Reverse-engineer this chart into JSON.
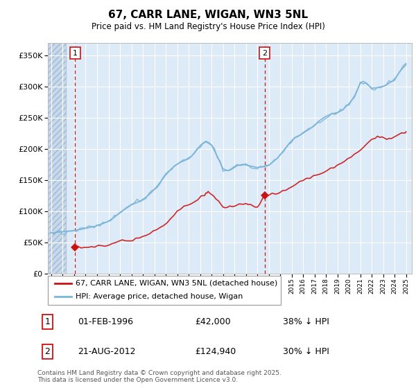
{
  "title": "67, CARR LANE, WIGAN, WN3 5NL",
  "subtitle": "Price paid vs. HM Land Registry's House Price Index (HPI)",
  "legend_line1": "67, CARR LANE, WIGAN, WN3 5NL (detached house)",
  "legend_line2": "HPI: Average price, detached house, Wigan",
  "footnote": "Contains HM Land Registry data © Crown copyright and database right 2025.\nThis data is licensed under the Open Government Licence v3.0.",
  "sale1_date": "01-FEB-1996",
  "sale1_price": "£42,000",
  "sale1_hpi": "38% ↓ HPI",
  "sale2_date": "21-AUG-2012",
  "sale2_price": "£124,940",
  "sale2_hpi": "30% ↓ HPI",
  "hpi_color": "#7ab4d8",
  "price_color": "#cc1111",
  "background_plot": "#ddeaf7",
  "ylim": [
    0,
    370000
  ],
  "xlim_start": 1993.7,
  "xlim_end": 2025.5,
  "sale1_x": 1996.08,
  "sale1_y": 42000,
  "sale2_x": 2012.64,
  "sale2_y": 124940,
  "hatch_end": 1995.3,
  "hpi_x": [
    1994.0,
    1994.25,
    1994.5,
    1994.75,
    1995.0,
    1995.25,
    1995.5,
    1995.75,
    1996.0,
    1996.25,
    1996.5,
    1996.75,
    1997.0,
    1997.25,
    1997.5,
    1997.75,
    1998.0,
    1998.25,
    1998.5,
    1998.75,
    1999.0,
    1999.25,
    1999.5,
    1999.75,
    2000.0,
    2000.25,
    2000.5,
    2000.75,
    2001.0,
    2001.25,
    2001.5,
    2001.75,
    2002.0,
    2002.25,
    2002.5,
    2002.75,
    2003.0,
    2003.25,
    2003.5,
    2003.75,
    2004.0,
    2004.25,
    2004.5,
    2004.75,
    2005.0,
    2005.25,
    2005.5,
    2005.75,
    2006.0,
    2006.25,
    2006.5,
    2006.75,
    2007.0,
    2007.25,
    2007.5,
    2007.75,
    2008.0,
    2008.25,
    2008.5,
    2008.75,
    2009.0,
    2009.25,
    2009.5,
    2009.75,
    2010.0,
    2010.25,
    2010.5,
    2010.75,
    2011.0,
    2011.25,
    2011.5,
    2011.75,
    2012.0,
    2012.25,
    2012.5,
    2012.75,
    2013.0,
    2013.25,
    2013.5,
    2013.75,
    2014.0,
    2014.25,
    2014.5,
    2014.75,
    2015.0,
    2015.25,
    2015.5,
    2015.75,
    2016.0,
    2016.25,
    2016.5,
    2016.75,
    2017.0,
    2017.25,
    2017.5,
    2017.75,
    2018.0,
    2018.25,
    2018.5,
    2018.75,
    2019.0,
    2019.25,
    2019.5,
    2019.75,
    2020.0,
    2020.25,
    2020.5,
    2020.75,
    2021.0,
    2021.25,
    2021.5,
    2021.75,
    2022.0,
    2022.25,
    2022.5,
    2022.75,
    2023.0,
    2023.25,
    2023.5,
    2023.75,
    2024.0,
    2024.25,
    2024.5,
    2024.75,
    2025.0
  ],
  "hpi_y": [
    65000,
    65500,
    66000,
    66500,
    67000,
    67500,
    68000,
    68500,
    69000,
    69800,
    70500,
    71500,
    72500,
    73500,
    74500,
    75500,
    77000,
    78500,
    80000,
    82000,
    84000,
    87000,
    90000,
    94000,
    98000,
    101000,
    104000,
    107000,
    110000,
    112000,
    114000,
    116000,
    119000,
    122000,
    126000,
    130000,
    135000,
    140000,
    146000,
    152000,
    158000,
    163000,
    168000,
    172000,
    175000,
    178000,
    180000,
    182000,
    184000,
    188000,
    193000,
    199000,
    205000,
    209000,
    212000,
    210000,
    206000,
    197000,
    188000,
    178000,
    168000,
    166000,
    165000,
    167000,
    170000,
    173000,
    174000,
    175000,
    174000,
    173000,
    172000,
    171000,
    170000,
    170500,
    171000,
    172000,
    174000,
    177000,
    181000,
    185000,
    190000,
    196000,
    202000,
    208000,
    213000,
    217000,
    220000,
    222000,
    225000,
    228000,
    231000,
    234000,
    238000,
    242000,
    246000,
    249000,
    252000,
    254000,
    256000,
    257000,
    258000,
    260000,
    263000,
    268000,
    272000,
    278000,
    285000,
    295000,
    305000,
    308000,
    305000,
    301000,
    297000,
    297500,
    298000,
    299000,
    300000,
    302000,
    305000,
    308000,
    312000,
    318000,
    325000,
    330000,
    335000
  ],
  "price_x": [
    1996.08,
    1996.3,
    1996.6,
    1996.9,
    1997.2,
    1997.5,
    1997.8,
    1998.1,
    1998.4,
    1998.7,
    1999.0,
    1999.3,
    1999.6,
    1999.9,
    2000.2,
    2000.5,
    2000.8,
    2001.1,
    2001.4,
    2001.7,
    2002.0,
    2002.3,
    2002.6,
    2002.9,
    2003.2,
    2003.5,
    2003.8,
    2004.1,
    2004.4,
    2004.7,
    2005.0,
    2005.3,
    2005.6,
    2005.9,
    2006.2,
    2006.5,
    2006.8,
    2007.1,
    2007.4,
    2007.5,
    2007.6,
    2007.7,
    2007.8,
    2008.0,
    2008.2,
    2008.4,
    2008.6,
    2008.8,
    2009.0,
    2009.2,
    2009.4,
    2009.6,
    2009.8,
    2010.0,
    2010.2,
    2010.4,
    2010.6,
    2010.8,
    2011.0,
    2011.2,
    2011.4,
    2011.6,
    2011.8,
    2012.0,
    2012.2,
    2012.64,
    2012.8,
    2013.0,
    2013.3,
    2013.6,
    2013.9,
    2014.2,
    2014.5,
    2014.8,
    2015.1,
    2015.4,
    2015.7,
    2016.0,
    2016.3,
    2016.6,
    2016.9,
    2017.2,
    2017.5,
    2017.8,
    2018.1,
    2018.4,
    2018.7,
    2019.0,
    2019.3,
    2019.6,
    2019.9,
    2020.2,
    2020.5,
    2020.8,
    2021.1,
    2021.4,
    2021.7,
    2022.0,
    2022.3,
    2022.5,
    2022.7,
    2022.9,
    2023.1,
    2023.3,
    2023.5,
    2023.7,
    2024.0,
    2024.3,
    2024.6,
    2024.9,
    2025.0
  ],
  "price_y": [
    42000,
    42200,
    42400,
    42700,
    43000,
    43500,
    44000,
    44500,
    45000,
    45500,
    46500,
    47500,
    48500,
    49500,
    50500,
    52000,
    53500,
    55000,
    56500,
    58000,
    60000,
    62000,
    64000,
    67000,
    70000,
    74000,
    78000,
    83000,
    88000,
    93000,
    98000,
    103000,
    107000,
    110000,
    113000,
    116000,
    119000,
    122000,
    126000,
    128000,
    130000,
    130500,
    129000,
    127000,
    124000,
    120000,
    116000,
    112000,
    108000,
    107000,
    106000,
    106500,
    107000,
    108000,
    109000,
    110000,
    111000,
    111500,
    111000,
    110000,
    109000,
    108500,
    108000,
    108000,
    109000,
    124940,
    125500,
    126000,
    127000,
    128500,
    130000,
    132000,
    134000,
    137000,
    140000,
    143000,
    146000,
    149000,
    152000,
    155000,
    157000,
    159000,
    161000,
    163000,
    165500,
    168000,
    171000,
    174000,
    177000,
    180000,
    183000,
    186000,
    190000,
    195000,
    200000,
    205000,
    210000,
    215000,
    218000,
    220000,
    218000,
    216000,
    215000,
    216000,
    217000,
    218000,
    220000,
    222000,
    224000,
    226000,
    228000
  ]
}
